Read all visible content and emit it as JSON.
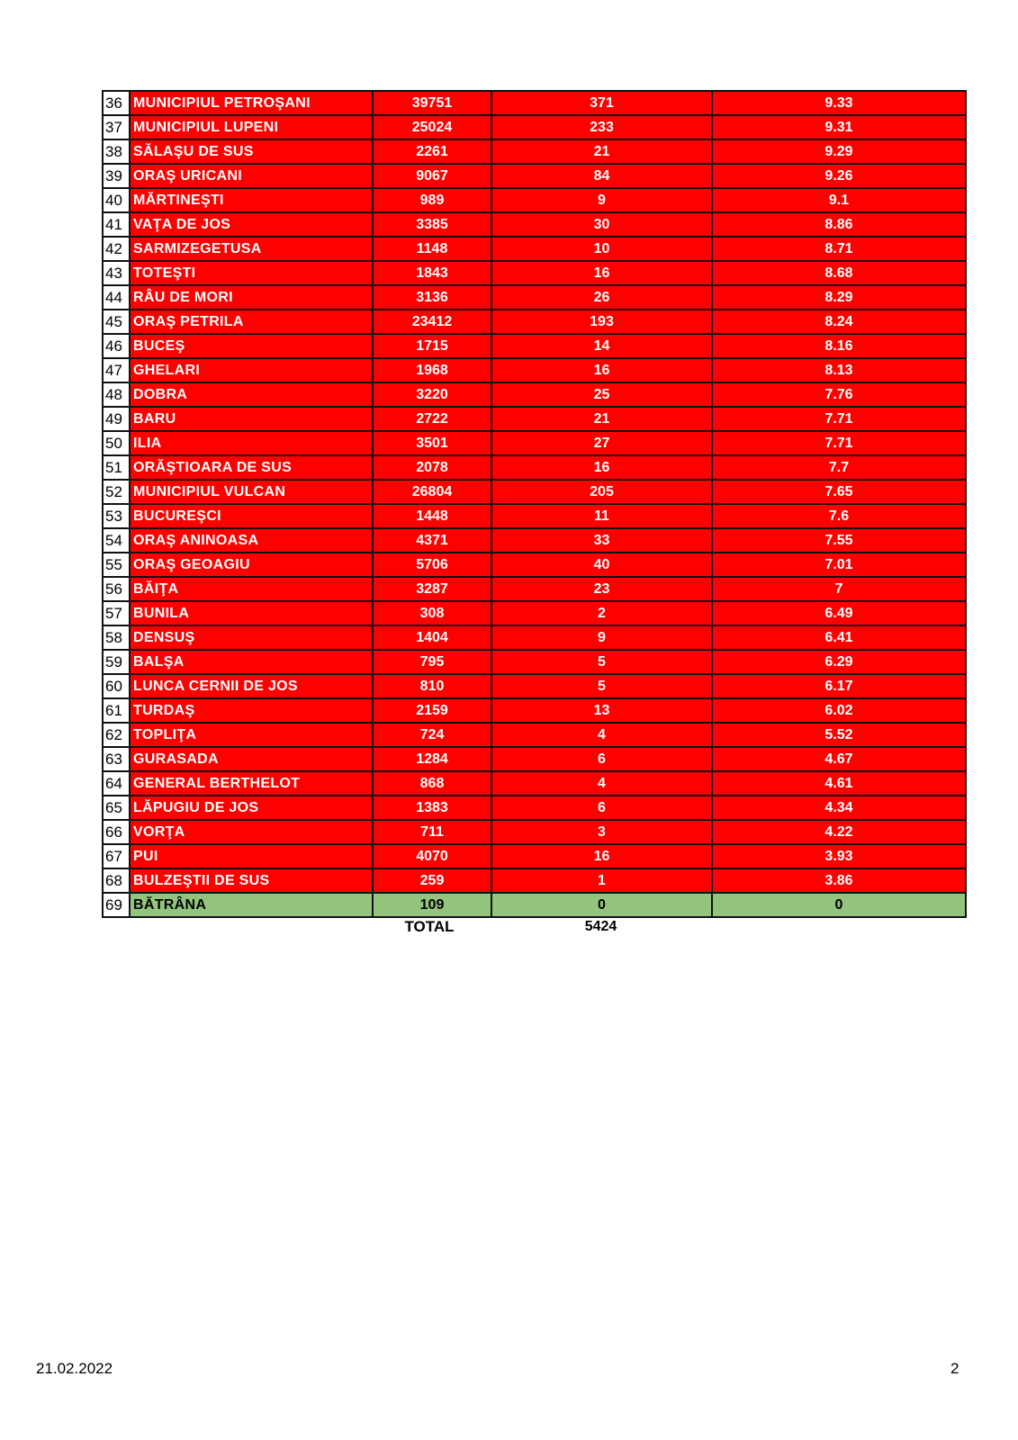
{
  "colors": {
    "above_threshold": "#fe0000",
    "zero": "#93c47d"
  },
  "rows": [
    {
      "nr": "36",
      "name": "MUNICIPIUL PETROŞANI",
      "population": "39751",
      "cases": "371",
      "rate": "9.33",
      "status": "red"
    },
    {
      "nr": "37",
      "name": "MUNICIPIUL LUPENI",
      "population": "25024",
      "cases": "233",
      "rate": "9.31",
      "status": "red"
    },
    {
      "nr": "38",
      "name": "SĂLAŞU DE SUS",
      "population": "2261",
      "cases": "21",
      "rate": "9.29",
      "status": "red"
    },
    {
      "nr": "39",
      "name": "ORAŞ URICANI",
      "population": "9067",
      "cases": "84",
      "rate": "9.26",
      "status": "red"
    },
    {
      "nr": "40",
      "name": "MĂRTINEŞTI",
      "population": "989",
      "cases": "9",
      "rate": "9.1",
      "status": "red"
    },
    {
      "nr": "41",
      "name": "VAŢA DE JOS",
      "population": "3385",
      "cases": "30",
      "rate": "8.86",
      "status": "red"
    },
    {
      "nr": "42",
      "name": "SARMIZEGETUSA",
      "population": "1148",
      "cases": "10",
      "rate": "8.71",
      "status": "red"
    },
    {
      "nr": "43",
      "name": "TOTEŞTI",
      "population": "1843",
      "cases": "16",
      "rate": "8.68",
      "status": "red"
    },
    {
      "nr": "44",
      "name": "RÂU DE MORI",
      "population": "3136",
      "cases": "26",
      "rate": "8.29",
      "status": "red"
    },
    {
      "nr": "45",
      "name": "ORAŞ PETRILA",
      "population": "23412",
      "cases": "193",
      "rate": "8.24",
      "status": "red"
    },
    {
      "nr": "46",
      "name": "BUCEŞ",
      "population": "1715",
      "cases": "14",
      "rate": "8.16",
      "status": "red"
    },
    {
      "nr": "47",
      "name": "GHELARI",
      "population": "1968",
      "cases": "16",
      "rate": "8.13",
      "status": "red"
    },
    {
      "nr": "48",
      "name": "DOBRA",
      "population": "3220",
      "cases": "25",
      "rate": "7.76",
      "status": "red"
    },
    {
      "nr": "49",
      "name": "BARU",
      "population": "2722",
      "cases": "21",
      "rate": "7.71",
      "status": "red"
    },
    {
      "nr": "50",
      "name": "ILIA",
      "population": "3501",
      "cases": "27",
      "rate": "7.71",
      "status": "red"
    },
    {
      "nr": "51",
      "name": "ORĂŞTIOARA DE SUS",
      "population": "2078",
      "cases": "16",
      "rate": "7.7",
      "status": "red"
    },
    {
      "nr": "52",
      "name": "MUNICIPIUL VULCAN",
      "population": "26804",
      "cases": "205",
      "rate": "7.65",
      "status": "red"
    },
    {
      "nr": "53",
      "name": "BUCUREŞCI",
      "population": "1448",
      "cases": "11",
      "rate": "7.6",
      "status": "red"
    },
    {
      "nr": "54",
      "name": "ORAŞ ANINOASA",
      "population": "4371",
      "cases": "33",
      "rate": "7.55",
      "status": "red"
    },
    {
      "nr": "55",
      "name": "ORAŞ GEOAGIU",
      "population": "5706",
      "cases": "40",
      "rate": "7.01",
      "status": "red"
    },
    {
      "nr": "56",
      "name": "BĂIŢA",
      "population": "3287",
      "cases": "23",
      "rate": "7",
      "status": "red"
    },
    {
      "nr": "57",
      "name": "BUNILA",
      "population": "308",
      "cases": "2",
      "rate": "6.49",
      "status": "red"
    },
    {
      "nr": "58",
      "name": "DENSUŞ",
      "population": "1404",
      "cases": "9",
      "rate": "6.41",
      "status": "red"
    },
    {
      "nr": "59",
      "name": "BALŞA",
      "population": "795",
      "cases": "5",
      "rate": "6.29",
      "status": "red"
    },
    {
      "nr": "60",
      "name": "LUNCA CERNII DE JOS",
      "population": "810",
      "cases": "5",
      "rate": "6.17",
      "status": "red"
    },
    {
      "nr": "61",
      "name": "TURDAŞ",
      "population": "2159",
      "cases": "13",
      "rate": "6.02",
      "status": "red"
    },
    {
      "nr": "62",
      "name": "TOPLIŢA",
      "population": "724",
      "cases": "4",
      "rate": "5.52",
      "status": "red"
    },
    {
      "nr": "63",
      "name": "GURASADA",
      "population": "1284",
      "cases": "6",
      "rate": "4.67",
      "status": "red"
    },
    {
      "nr": "64",
      "name": "GENERAL BERTHELOT",
      "population": "868",
      "cases": "4",
      "rate": "4.61",
      "status": "red"
    },
    {
      "nr": "65",
      "name": "LĂPUGIU DE JOS",
      "population": "1383",
      "cases": "6",
      "rate": "4.34",
      "status": "red"
    },
    {
      "nr": "66",
      "name": "VORŢA",
      "population": "711",
      "cases": "3",
      "rate": "4.22",
      "status": "red"
    },
    {
      "nr": "67",
      "name": "PUI",
      "population": "4070",
      "cases": "16",
      "rate": "3.93",
      "status": "red"
    },
    {
      "nr": "68",
      "name": "BULZEŞTII DE SUS",
      "population": "259",
      "cases": "1",
      "rate": "3.86",
      "status": "red"
    },
    {
      "nr": "69",
      "name": "BĂTRÂNA",
      "population": "109",
      "cases": "0",
      "rate": "0",
      "status": "green"
    }
  ],
  "total": {
    "label": "TOTAL",
    "value": "5424"
  },
  "footer": {
    "date": "21.02.2022",
    "page": "2"
  }
}
